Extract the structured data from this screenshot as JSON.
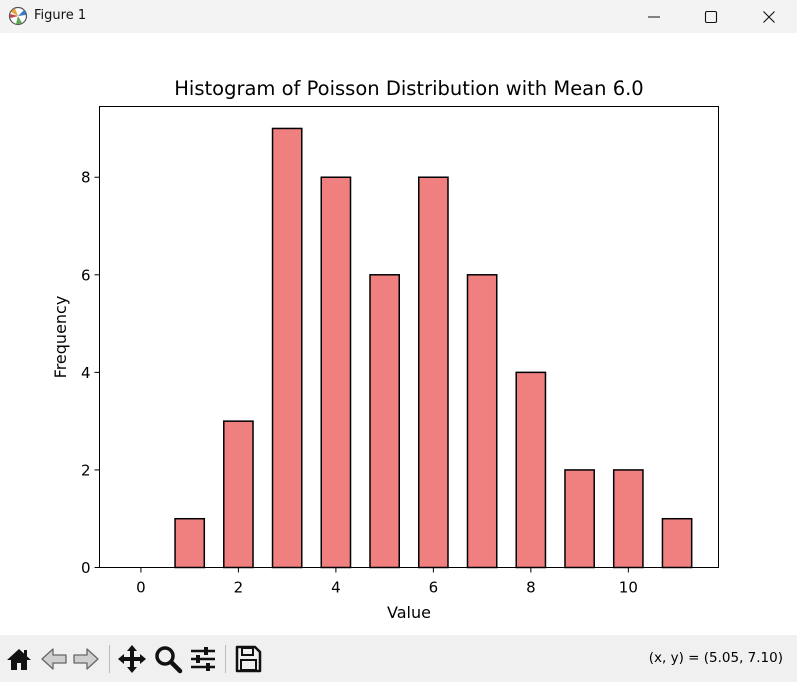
{
  "window": {
    "title": "Figure 1",
    "icons": [
      "matplotlib-logo-icon",
      "minimize-icon",
      "maximize-icon",
      "close-icon"
    ]
  },
  "toolbar": {
    "buttons": [
      "home-icon",
      "back-arrow-icon",
      "forward-arrow-icon",
      "pan-icon",
      "zoom-icon",
      "configure-subplots-icon",
      "save-icon"
    ],
    "coords": "(x, y) = (5.05, 7.10)"
  },
  "chart_data": {
    "type": "bar",
    "title": "Histogram of Poisson Distribution with Mean 6.0",
    "xlabel": "Value",
    "ylabel": "Frequency",
    "categories": [
      0,
      1,
      2,
      3,
      4,
      5,
      6,
      7,
      8,
      9,
      10,
      11
    ],
    "values": [
      0,
      1,
      3,
      9,
      8,
      6,
      8,
      6,
      4,
      2,
      2,
      1
    ],
    "bar_width": 0.6,
    "xlim": [
      -0.85,
      11.85
    ],
    "ylim": [
      0,
      9.45
    ],
    "xticks": [
      0,
      2,
      4,
      6,
      8,
      10
    ],
    "yticks": [
      0,
      2,
      4,
      6,
      8
    ],
    "bar_color": "#f08080",
    "edge_color": "#000000",
    "grid": false
  }
}
